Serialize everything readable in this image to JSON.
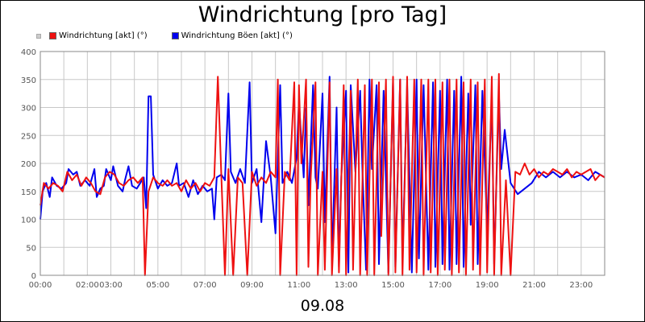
{
  "chart_data": {
    "type": "line",
    "title": "Windrichtung [pro Tag]",
    "xlabel": "09.08",
    "ylabel": "",
    "ylim": [
      0,
      400
    ],
    "yticks": [
      0,
      50,
      100,
      150,
      200,
      250,
      300,
      350,
      400
    ],
    "xlim": [
      0,
      24
    ],
    "xticks": [
      {
        "x": 0,
        "label": "00:00"
      },
      {
        "x": 2,
        "label": "02:00"
      },
      {
        "x": 3,
        "label": "03:00"
      },
      {
        "x": 5,
        "label": "05:00"
      },
      {
        "x": 7,
        "label": "07:00"
      },
      {
        "x": 9,
        "label": "09:00"
      },
      {
        "x": 11,
        "label": "11:00"
      },
      {
        "x": 13,
        "label": "13:00"
      },
      {
        "x": 15,
        "label": "15:00"
      },
      {
        "x": 17,
        "label": "17:00"
      },
      {
        "x": 19,
        "label": "19:00"
      },
      {
        "x": 21,
        "label": "21:00"
      },
      {
        "x": 23,
        "label": "23:00"
      }
    ],
    "grid": true,
    "legend_position": "top-left",
    "series": [
      {
        "name": "Windrichtung Böen [akt] (°)",
        "color": "#0000ee",
        "points": [
          [
            0.0,
            100
          ],
          [
            0.1,
            150
          ],
          [
            0.25,
            165
          ],
          [
            0.4,
            140
          ],
          [
            0.5,
            175
          ],
          [
            0.7,
            160
          ],
          [
            0.9,
            155
          ],
          [
            1.1,
            165
          ],
          [
            1.2,
            190
          ],
          [
            1.4,
            180
          ],
          [
            1.55,
            185
          ],
          [
            1.7,
            160
          ],
          [
            1.9,
            170
          ],
          [
            2.1,
            160
          ],
          [
            2.3,
            190
          ],
          [
            2.4,
            140
          ],
          [
            2.55,
            155
          ],
          [
            2.7,
            160
          ],
          [
            2.8,
            190
          ],
          [
            3.0,
            170
          ],
          [
            3.1,
            195
          ],
          [
            3.3,
            160
          ],
          [
            3.5,
            150
          ],
          [
            3.6,
            170
          ],
          [
            3.75,
            195
          ],
          [
            3.9,
            160
          ],
          [
            4.1,
            155
          ],
          [
            4.25,
            165
          ],
          [
            4.4,
            175
          ],
          [
            4.5,
            120
          ],
          [
            4.6,
            320
          ],
          [
            4.7,
            320
          ],
          [
            4.8,
            180
          ],
          [
            5.0,
            155
          ],
          [
            5.2,
            170
          ],
          [
            5.4,
            160
          ],
          [
            5.6,
            165
          ],
          [
            5.8,
            200
          ],
          [
            5.9,
            160
          ],
          [
            6.1,
            165
          ],
          [
            6.3,
            140
          ],
          [
            6.5,
            170
          ],
          [
            6.7,
            145
          ],
          [
            6.9,
            160
          ],
          [
            7.1,
            150
          ],
          [
            7.3,
            155
          ],
          [
            7.4,
            100
          ],
          [
            7.5,
            175
          ],
          [
            7.7,
            180
          ],
          [
            7.85,
            170
          ],
          [
            8.0,
            325
          ],
          [
            8.1,
            185
          ],
          [
            8.3,
            165
          ],
          [
            8.5,
            190
          ],
          [
            8.7,
            165
          ],
          [
            8.9,
            345
          ],
          [
            9.0,
            165
          ],
          [
            9.2,
            190
          ],
          [
            9.4,
            95
          ],
          [
            9.6,
            240
          ],
          [
            9.8,
            175
          ],
          [
            10.0,
            75
          ],
          [
            10.2,
            340
          ],
          [
            10.3,
            165
          ],
          [
            10.5,
            185
          ],
          [
            10.7,
            165
          ],
          [
            10.9,
            210
          ],
          [
            11.0,
            310
          ],
          [
            11.2,
            175
          ],
          [
            11.3,
            300
          ],
          [
            11.4,
            125
          ],
          [
            11.6,
            340
          ],
          [
            11.7,
            175
          ],
          [
            11.8,
            155
          ],
          [
            12.0,
            325
          ],
          [
            12.1,
            95
          ],
          [
            12.3,
            355
          ],
          [
            12.4,
            25
          ],
          [
            12.6,
            300
          ],
          [
            12.7,
            15
          ],
          [
            12.8,
            175
          ],
          [
            13.0,
            330
          ],
          [
            13.1,
            5
          ],
          [
            13.2,
            340
          ],
          [
            13.4,
            185
          ],
          [
            13.6,
            330
          ],
          [
            13.7,
            185
          ],
          [
            13.85,
            10
          ],
          [
            14.0,
            350
          ],
          [
            14.1,
            190
          ],
          [
            14.3,
            340
          ],
          [
            14.4,
            20
          ],
          [
            14.6,
            330
          ],
          [
            14.8,
            5
          ],
          [
            15.0,
            345
          ],
          [
            15.1,
            15
          ],
          [
            15.3,
            350
          ],
          [
            15.4,
            25
          ],
          [
            15.6,
            340
          ],
          [
            15.8,
            5
          ],
          [
            16.0,
            350
          ],
          [
            16.1,
            30
          ],
          [
            16.3,
            340
          ],
          [
            16.5,
            10
          ],
          [
            16.7,
            345
          ],
          [
            16.8,
            15
          ],
          [
            17.0,
            330
          ],
          [
            17.1,
            20
          ],
          [
            17.3,
            350
          ],
          [
            17.4,
            10
          ],
          [
            17.6,
            330
          ],
          [
            17.7,
            20
          ],
          [
            17.9,
            355
          ],
          [
            18.0,
            15
          ],
          [
            18.2,
            325
          ],
          [
            18.3,
            90
          ],
          [
            18.5,
            340
          ],
          [
            18.6,
            20
          ],
          [
            18.8,
            330
          ],
          [
            19.0,
            80
          ],
          [
            19.2,
            320
          ],
          [
            19.3,
            20
          ],
          [
            19.5,
            325
          ],
          [
            19.6,
            190
          ],
          [
            19.75,
            260
          ],
          [
            20.0,
            165
          ],
          [
            20.3,
            145
          ],
          [
            20.6,
            155
          ],
          [
            20.9,
            165
          ],
          [
            21.2,
            185
          ],
          [
            21.5,
            175
          ],
          [
            21.8,
            185
          ],
          [
            22.1,
            175
          ],
          [
            22.4,
            185
          ],
          [
            22.7,
            175
          ],
          [
            23.0,
            180
          ],
          [
            23.3,
            170
          ],
          [
            23.6,
            185
          ],
          [
            24.0,
            175
          ]
        ]
      },
      {
        "name": "Windrichtung [akt] (°)",
        "color": "#ee1111",
        "points": [
          [
            0.0,
            125
          ],
          [
            0.15,
            165
          ],
          [
            0.35,
            155
          ],
          [
            0.55,
            165
          ],
          [
            0.75,
            160
          ],
          [
            0.95,
            150
          ],
          [
            1.15,
            185
          ],
          [
            1.35,
            170
          ],
          [
            1.55,
            180
          ],
          [
            1.75,
            160
          ],
          [
            1.95,
            175
          ],
          [
            2.15,
            165
          ],
          [
            2.35,
            150
          ],
          [
            2.55,
            145
          ],
          [
            2.75,
            175
          ],
          [
            2.95,
            185
          ],
          [
            3.15,
            180
          ],
          [
            3.35,
            165
          ],
          [
            3.55,
            160
          ],
          [
            3.75,
            170
          ],
          [
            3.95,
            175
          ],
          [
            4.15,
            165
          ],
          [
            4.35,
            175
          ],
          [
            4.45,
            0
          ],
          [
            4.6,
            150
          ],
          [
            4.8,
            175
          ],
          [
            5.0,
            165
          ],
          [
            5.2,
            160
          ],
          [
            5.4,
            170
          ],
          [
            5.6,
            160
          ],
          [
            5.8,
            165
          ],
          [
            6.0,
            150
          ],
          [
            6.2,
            170
          ],
          [
            6.4,
            155
          ],
          [
            6.6,
            165
          ],
          [
            6.8,
            150
          ],
          [
            7.0,
            165
          ],
          [
            7.2,
            160
          ],
          [
            7.4,
            175
          ],
          [
            7.55,
            355
          ],
          [
            7.7,
            175
          ],
          [
            7.85,
            0
          ],
          [
            8.0,
            190
          ],
          [
            8.2,
            0
          ],
          [
            8.4,
            175
          ],
          [
            8.6,
            165
          ],
          [
            8.8,
            0
          ],
          [
            9.0,
            185
          ],
          [
            9.2,
            160
          ],
          [
            9.4,
            175
          ],
          [
            9.6,
            165
          ],
          [
            9.8,
            185
          ],
          [
            10.0,
            175
          ],
          [
            10.1,
            350
          ],
          [
            10.2,
            0
          ],
          [
            10.4,
            185
          ],
          [
            10.6,
            170
          ],
          [
            10.8,
            345
          ],
          [
            10.9,
            0
          ],
          [
            11.0,
            340
          ],
          [
            11.1,
            200
          ],
          [
            11.3,
            350
          ],
          [
            11.4,
            15
          ],
          [
            11.5,
            175
          ],
          [
            11.7,
            345
          ],
          [
            11.8,
            0
          ],
          [
            12.0,
            185
          ],
          [
            12.1,
            10
          ],
          [
            12.3,
            345
          ],
          [
            12.4,
            0
          ],
          [
            12.6,
            190
          ],
          [
            12.7,
            5
          ],
          [
            12.9,
            340
          ],
          [
            13.0,
            0
          ],
          [
            13.2,
            330
          ],
          [
            13.3,
            10
          ],
          [
            13.5,
            350
          ],
          [
            13.6,
            0
          ],
          [
            13.8,
            340
          ],
          [
            13.9,
            0
          ],
          [
            14.1,
            350
          ],
          [
            14.2,
            0
          ],
          [
            14.4,
            345
          ],
          [
            14.5,
            70
          ],
          [
            14.7,
            350
          ],
          [
            14.8,
            0
          ],
          [
            15.0,
            355
          ],
          [
            15.1,
            5
          ],
          [
            15.3,
            350
          ],
          [
            15.4,
            0
          ],
          [
            15.6,
            355
          ],
          [
            15.7,
            10
          ],
          [
            15.9,
            350
          ],
          [
            16.0,
            5
          ],
          [
            16.2,
            350
          ],
          [
            16.3,
            0
          ],
          [
            16.5,
            350
          ],
          [
            16.6,
            5
          ],
          [
            16.8,
            350
          ],
          [
            16.9,
            0
          ],
          [
            17.1,
            345
          ],
          [
            17.2,
            10
          ],
          [
            17.4,
            350
          ],
          [
            17.5,
            0
          ],
          [
            17.7,
            350
          ],
          [
            17.8,
            5
          ],
          [
            18.0,
            345
          ],
          [
            18.1,
            0
          ],
          [
            18.3,
            350
          ],
          [
            18.4,
            10
          ],
          [
            18.6,
            345
          ],
          [
            18.7,
            0
          ],
          [
            18.9,
            350
          ],
          [
            19.0,
            5
          ],
          [
            19.2,
            355
          ],
          [
            19.3,
            0
          ],
          [
            19.5,
            360
          ],
          [
            19.6,
            0
          ],
          [
            19.8,
            170
          ],
          [
            20.0,
            0
          ],
          [
            20.2,
            185
          ],
          [
            20.4,
            180
          ],
          [
            20.6,
            200
          ],
          [
            20.8,
            180
          ],
          [
            21.0,
            190
          ],
          [
            21.2,
            175
          ],
          [
            21.4,
            185
          ],
          [
            21.6,
            180
          ],
          [
            21.8,
            190
          ],
          [
            22.0,
            185
          ],
          [
            22.2,
            180
          ],
          [
            22.4,
            190
          ],
          [
            22.6,
            175
          ],
          [
            22.8,
            185
          ],
          [
            23.0,
            180
          ],
          [
            23.2,
            185
          ],
          [
            23.4,
            190
          ],
          [
            23.6,
            170
          ],
          [
            23.8,
            180
          ],
          [
            24.0,
            175
          ]
        ]
      }
    ],
    "legend": [
      {
        "label": "Windrichtung [akt] (°)",
        "color": "#ee1111"
      },
      {
        "label": "Windrichtung Böen [akt] (°)",
        "color": "#0000ee"
      }
    ]
  }
}
